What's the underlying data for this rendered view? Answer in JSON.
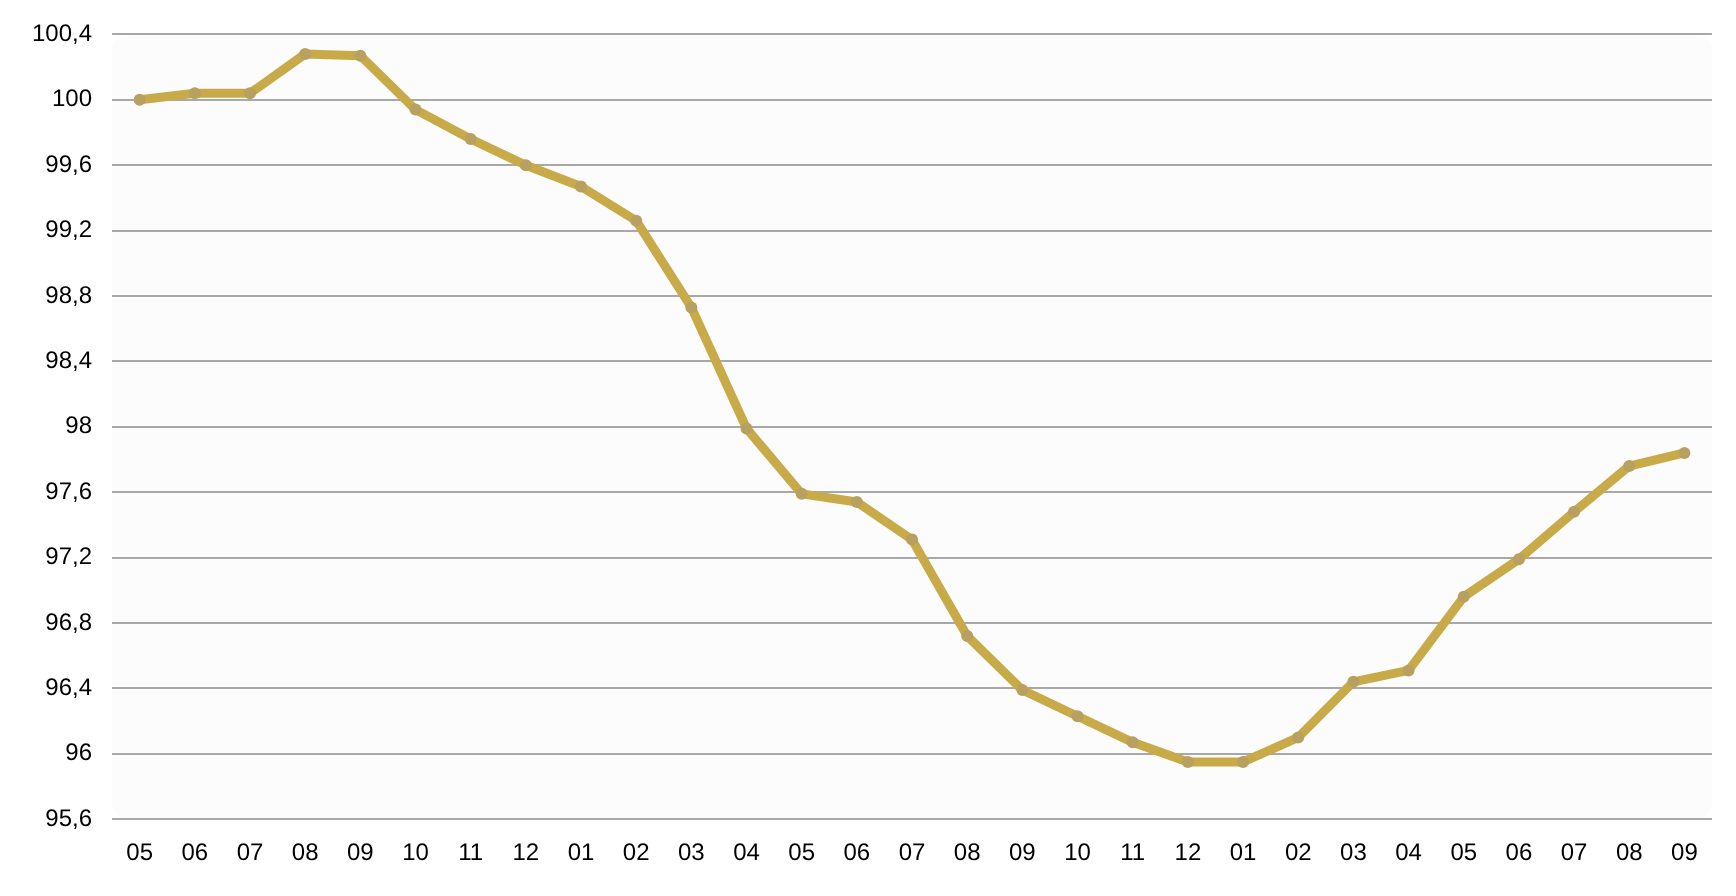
{
  "chart_data": {
    "type": "line",
    "categories": [
      "05",
      "06",
      "07",
      "08",
      "09",
      "10",
      "11",
      "12",
      "01",
      "02",
      "03",
      "04",
      "05",
      "06",
      "07",
      "08",
      "09",
      "10",
      "11",
      "12",
      "01",
      "02",
      "03",
      "04",
      "05",
      "06",
      "07",
      "08",
      "09"
    ],
    "series": [
      {
        "color": "#c8aa48",
        "values": [
          100.0,
          100.04,
          100.04,
          100.28,
          100.27,
          99.94,
          99.76,
          99.6,
          99.47,
          99.26,
          98.73,
          97.99,
          97.59,
          97.54,
          97.31,
          96.72,
          96.39,
          96.23,
          96.07,
          95.95,
          95.95,
          96.1,
          96.44,
          96.51,
          96.96,
          97.19,
          97.48,
          97.76,
          97.84
        ]
      }
    ],
    "ylim": [
      95.6,
      100.4
    ],
    "yticks": [
      {
        "value": 95.6,
        "label": "95,6"
      },
      {
        "value": 96,
        "label": "96"
      },
      {
        "value": 96.4,
        "label": "96,4"
      },
      {
        "value": 96.8,
        "label": "96,8"
      },
      {
        "value": 97.2,
        "label": "97,2"
      },
      {
        "value": 97.6,
        "label": "97,6"
      },
      {
        "value": 98,
        "label": "98"
      },
      {
        "value": 98.4,
        "label": "98,4"
      },
      {
        "value": 98.8,
        "label": "98,8"
      },
      {
        "value": 99.2,
        "label": "99,2"
      },
      {
        "value": 99.6,
        "label": "99,6"
      },
      {
        "value": 100,
        "label": "100"
      },
      {
        "value": 100.4,
        "label": "100,4"
      }
    ],
    "grid": "y",
    "legend": false,
    "marker": "circle",
    "line_style": "solid"
  }
}
